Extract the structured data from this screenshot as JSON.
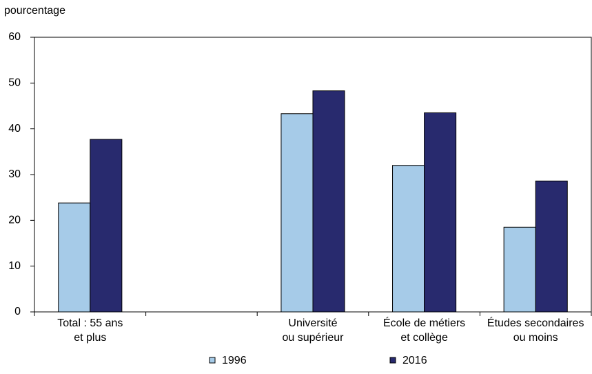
{
  "chart_data": {
    "type": "bar",
    "y_label": "pourcentage",
    "categories": [
      "Total : 55 ans\net plus",
      null,
      "Université\nou supérieur",
      "École de métiers\net collège",
      "Études secondaires\nou moins"
    ],
    "series": [
      {
        "name": "1996",
        "color": "#a6cbe8",
        "values": [
          23.8,
          null,
          43.3,
          32,
          18.5
        ]
      },
      {
        "name": "2016",
        "color": "#282a6e",
        "values": [
          37.7,
          null,
          48.3,
          43.5,
          28.6
        ]
      }
    ],
    "ylim": [
      0,
      60
    ],
    "yticks": [
      0,
      10,
      20,
      30,
      40,
      50,
      60
    ]
  }
}
